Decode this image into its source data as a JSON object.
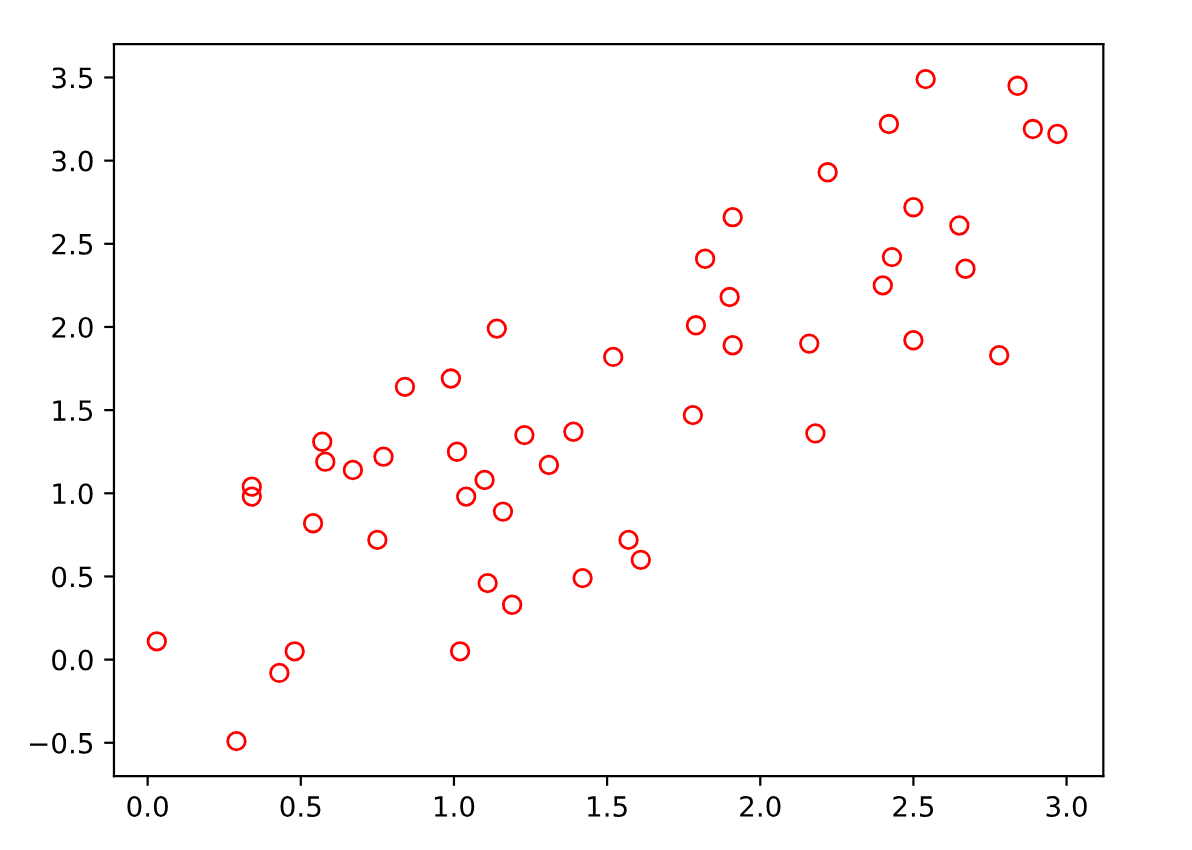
{
  "chart_data": {
    "type": "scatter",
    "marker": "circle",
    "grid": false,
    "legend": false,
    "x": [
      0.03,
      0.29,
      0.34,
      0.34,
      0.43,
      0.48,
      0.54,
      0.57,
      0.58,
      0.67,
      0.75,
      0.77,
      0.84,
      0.99,
      1.01,
      1.02,
      1.04,
      1.1,
      1.11,
      1.14,
      1.16,
      1.19,
      1.23,
      1.31,
      1.39,
      1.42,
      1.52,
      1.57,
      1.61,
      1.78,
      1.79,
      1.82,
      1.9,
      1.91,
      1.91,
      2.16,
      2.18,
      2.22,
      2.4,
      2.42,
      2.43,
      2.5,
      2.5,
      2.54,
      2.65,
      2.67,
      2.78,
      2.84,
      2.89,
      2.97
    ],
    "series": [
      {
        "color": "#ff0000",
        "values": [
          0.11,
          -0.49,
          1.04,
          0.98,
          -0.08,
          0.05,
          0.82,
          1.31,
          1.19,
          1.14,
          0.72,
          1.22,
          1.64,
          1.69,
          1.25,
          0.05,
          0.98,
          1.08,
          0.46,
          1.99,
          0.89,
          0.33,
          1.35,
          1.17,
          1.37,
          0.49,
          1.82,
          0.72,
          0.6,
          1.47,
          2.01,
          2.41,
          2.18,
          2.66,
          1.89,
          1.9,
          1.36,
          2.93,
          2.25,
          3.22,
          2.42,
          2.72,
          1.92,
          3.49,
          2.61,
          2.35,
          1.83,
          3.45,
          3.19,
          3.16
        ]
      }
    ],
    "xlim": [
      -0.11,
      3.12
    ],
    "ylim": [
      -0.7,
      3.7
    ],
    "xticks": [
      {
        "value": 0,
        "label": "0.0"
      },
      {
        "value": 0.5,
        "label": "0.5"
      },
      {
        "value": 1,
        "label": "1.0"
      },
      {
        "value": 1.5,
        "label": "1.5"
      },
      {
        "value": 2,
        "label": "2.0"
      },
      {
        "value": 2.5,
        "label": "2.5"
      },
      {
        "value": 3,
        "label": "3.0"
      }
    ],
    "yticks": [
      {
        "value": -0.5,
        "label": "−0.5"
      },
      {
        "value": 0,
        "label": "0.0"
      },
      {
        "value": 0.5,
        "label": "0.5"
      },
      {
        "value": 1,
        "label": "1.0"
      },
      {
        "value": 1.5,
        "label": "1.5"
      },
      {
        "value": 2,
        "label": "2.0"
      },
      {
        "value": 2.5,
        "label": "2.5"
      },
      {
        "value": 3,
        "label": "3.0"
      },
      {
        "value": 3.5,
        "label": "3.5"
      }
    ]
  }
}
